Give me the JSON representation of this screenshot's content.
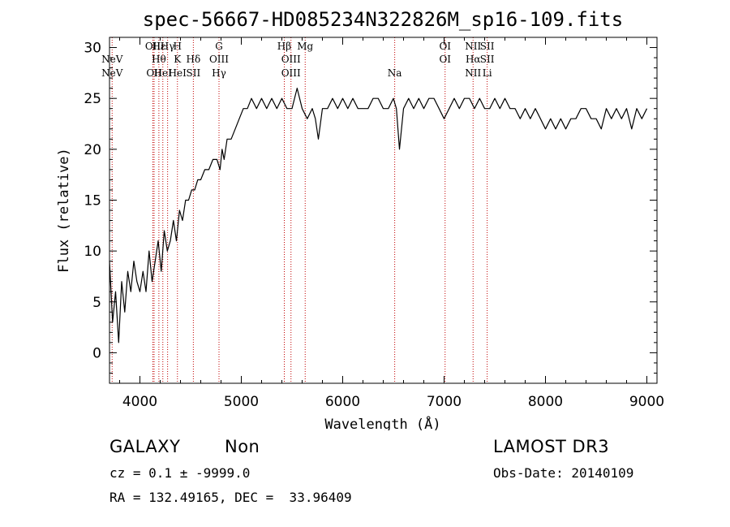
{
  "chart_data": {
    "type": "line",
    "title": "spec-56667-HD085234N322826M_sp16-109.fits",
    "xlabel": "Wavelength (Å)",
    "ylabel": "Flux (relative)",
    "xlim": [
      3700,
      9100
    ],
    "ylim": [
      -3,
      31
    ],
    "xticks": [
      4000,
      5000,
      6000,
      7000,
      8000,
      9000
    ],
    "yticks": [
      0,
      5,
      10,
      15,
      20,
      25,
      30
    ],
    "grid": false,
    "series": [
      {
        "x": [
          3700,
          3730,
          3760,
          3790,
          3820,
          3850,
          3880,
          3910,
          3940,
          3970,
          4000,
          4030,
          4060,
          4090,
          4120,
          4150,
          4180,
          4210,
          4240,
          4270,
          4300,
          4330,
          4360,
          4390,
          4420,
          4450,
          4480,
          4510,
          4540,
          4570,
          4600,
          4640,
          4680,
          4720,
          4760,
          4790,
          4810,
          4830,
          4860,
          4900,
          4940,
          4980,
          5020,
          5060,
          5100,
          5150,
          5200,
          5250,
          5300,
          5350,
          5400,
          5450,
          5500,
          5550,
          5600,
          5650,
          5700,
          5730,
          5760,
          5800,
          5850,
          5900,
          5950,
          6000,
          6050,
          6100,
          6150,
          6200,
          6250,
          6300,
          6350,
          6400,
          6450,
          6500,
          6530,
          6560,
          6600,
          6650,
          6700,
          6750,
          6800,
          6850,
          6900,
          6950,
          7000,
          7050,
          7100,
          7150,
          7200,
          7250,
          7300,
          7350,
          7400,
          7450,
          7500,
          7550,
          7600,
          7650,
          7700,
          7750,
          7800,
          7850,
          7900,
          7950,
          8000,
          8050,
          8100,
          8150,
          8200,
          8250,
          8300,
          8350,
          8400,
          8450,
          8500,
          8550,
          8600,
          8650,
          8700,
          8750,
          8800,
          8850,
          8900,
          8950,
          9000
        ],
        "y": [
          9,
          3,
          6,
          1,
          7,
          4,
          8,
          6,
          9,
          7,
          6,
          8,
          6,
          10,
          7,
          9,
          11,
          8,
          12,
          10,
          11,
          13,
          11,
          14,
          13,
          15,
          15,
          16,
          16,
          17,
          17,
          18,
          18,
          19,
          19,
          18,
          20,
          19,
          21,
          21,
          22,
          23,
          24,
          24,
          25,
          24,
          25,
          24,
          25,
          24,
          25,
          24,
          24,
          26,
          24,
          23,
          24,
          23,
          21,
          24,
          24,
          25,
          24,
          25,
          24,
          25,
          24,
          24,
          24,
          25,
          25,
          24,
          24,
          25,
          24,
          20,
          24,
          25,
          24,
          25,
          24,
          25,
          25,
          24,
          23,
          24,
          25,
          24,
          25,
          25,
          24,
          25,
          24,
          24,
          25,
          24,
          25,
          24,
          24,
          23,
          24,
          23,
          24,
          23,
          22,
          23,
          22,
          23,
          22,
          23,
          23,
          24,
          24,
          23,
          23,
          22,
          24,
          23,
          24,
          23,
          24,
          22,
          24,
          23,
          24
        ]
      }
    ],
    "spectral_lines": [
      {
        "wavelength": 3726,
        "labels": [
          "NeV",
          "NeV"
        ],
        "rows": [
          1,
          2
        ]
      },
      {
        "wavelength": 4128,
        "labels": [
          "OII"
        ],
        "rows": [
          0
        ]
      },
      {
        "wavelength": 4140,
        "labels": [
          "OII"
        ],
        "rows": [
          2
        ]
      },
      {
        "wavelength": 4187,
        "labels": [
          "Hε",
          "Hθ"
        ],
        "rows": [
          0,
          1
        ]
      },
      {
        "wavelength": 4226,
        "labels": [
          "HeI"
        ],
        "rows": [
          2
        ]
      },
      {
        "wavelength": 4273,
        "labels": [
          "Hγ"
        ],
        "rows": [
          0
        ]
      },
      {
        "wavelength": 4370,
        "labels": [
          "H",
          "K",
          "HeI"
        ],
        "rows": [
          0,
          1,
          2
        ]
      },
      {
        "wavelength": 4527,
        "labels": [
          "Hδ",
          "SII"
        ],
        "rows": [
          1,
          2
        ]
      },
      {
        "wavelength": 4780,
        "labels": [
          "G",
          "OIII",
          "Hγ"
        ],
        "rows": [
          0,
          1,
          2
        ]
      },
      {
        "wavelength": 5424,
        "labels": [
          "Hβ"
        ],
        "rows": [
          0
        ]
      },
      {
        "wavelength": 5490,
        "labels": [
          "OIII",
          "OIII"
        ],
        "rows": [
          1,
          2
        ]
      },
      {
        "wavelength": 5630,
        "labels": [
          "Mg"
        ],
        "rows": [
          0
        ]
      },
      {
        "wavelength": 6513,
        "labels": [
          "Na"
        ],
        "rows": [
          2
        ]
      },
      {
        "wavelength": 7010,
        "labels": [
          "OI",
          "OI"
        ],
        "rows": [
          0,
          1
        ]
      },
      {
        "wavelength": 7286,
        "labels": [
          "NII",
          "Hα",
          "NII"
        ],
        "rows": [
          0,
          1,
          2
        ]
      },
      {
        "wavelength": 7425,
        "labels": [
          "SII",
          "SII",
          "Li"
        ],
        "rows": [
          0,
          1,
          2
        ]
      }
    ]
  },
  "info": {
    "object_class": "GALAXY",
    "subclass": "Non",
    "survey": "LAMOST DR3",
    "redshift_line": "cz = 0.1 ± -9999.0",
    "obs_date": "Obs-Date: 20140109",
    "coords": "RA = 132.49165, DEC =  33.96409"
  },
  "colors": {
    "spectrum": "#000000",
    "line_marker": "#c00000",
    "axes": "#000000",
    "background": "#ffffff"
  }
}
